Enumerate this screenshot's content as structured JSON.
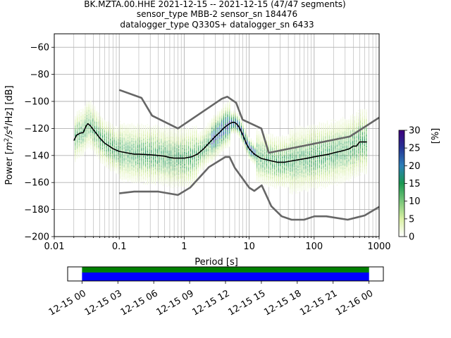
{
  "title": {
    "line1": "BK.MZTA.00.HHE   2021-12-15 -- 2021-12-15  (47/47 segments)",
    "line2": "sensor_type MBB-2 sensor_sn 184476",
    "line3": "datalogger_type Q330S+ datalogger_sn 6433"
  },
  "colors": {
    "nlnm_nhnm": "#666666",
    "mean_curve": "#000000",
    "grid": "#b0b0b0",
    "timeline_top": "#008000",
    "timeline_bottom": "#0000ff",
    "cmap": [
      "#ffffff",
      "#d9f0a3",
      "#78c679",
      "#1a9850",
      "#2c7fb8",
      "#253494",
      "#3f007d"
    ]
  },
  "chart_data": [
    {
      "type": "heatmap",
      "title": "",
      "xlabel": "Period [s]",
      "ylabel_parts": [
        "Power [",
        "m",
        "2",
        "/",
        "s",
        "4",
        "/Hz] [dB]"
      ],
      "x_scale": "log",
      "xlim": [
        0.01,
        1000
      ],
      "ylim": [
        -200,
        -50
      ],
      "x_ticks": [
        {
          "value": 0.01,
          "label": "0.01"
        },
        {
          "value": 0.1,
          "label": "0.1"
        },
        {
          "value": 1,
          "label": "1"
        },
        {
          "value": 10,
          "label": "10"
        },
        {
          "value": 100,
          "label": "100"
        },
        {
          "value": 1000,
          "label": "1000"
        }
      ],
      "y_ticks": [
        {
          "value": -60,
          "label": "−60"
        },
        {
          "value": -80,
          "label": "−80"
        },
        {
          "value": -100,
          "label": "−100"
        },
        {
          "value": -120,
          "label": "−120"
        },
        {
          "value": -140,
          "label": "−140"
        },
        {
          "value": -160,
          "label": "−160"
        },
        {
          "value": -180,
          "label": "−180"
        },
        {
          "value": -200,
          "label": "−200"
        }
      ],
      "grid": true,
      "colorbar": {
        "label": "[%]",
        "range": [
          0,
          30
        ],
        "ticks": [
          {
            "value": 0,
            "label": "0"
          },
          {
            "value": 5,
            "label": "5"
          },
          {
            "value": 10,
            "label": "10"
          },
          {
            "value": 15,
            "label": "15"
          },
          {
            "value": 20,
            "label": "20"
          },
          {
            "value": 25,
            "label": "25"
          },
          {
            "value": 30,
            "label": "30"
          }
        ]
      },
      "nhnm": {
        "x": [
          0.1,
          0.22,
          0.32,
          0.8,
          3.8,
          4.6,
          6.3,
          7.9,
          15.4,
          20,
          354.8,
          1000
        ],
        "y": [
          -91.5,
          -97.4,
          -110.5,
          -120.0,
          -98.0,
          -96.5,
          -101.0,
          -113.5,
          -120.0,
          -138.0,
          -126.0,
          -112.0
        ]
      },
      "nlnm": {
        "x": [
          0.1,
          0.17,
          0.4,
          0.8,
          1.24,
          2.4,
          4.3,
          5.0,
          6.0,
          10.0,
          12.0,
          15.6,
          21.9,
          31.6,
          45,
          70,
          101,
          154,
          328,
          600,
          1000
        ],
        "y": [
          -168.0,
          -166.7,
          -166.7,
          -169.2,
          -163.7,
          -148.6,
          -141.1,
          -141.1,
          -149.0,
          -163.8,
          -166.2,
          -162.1,
          -177.5,
          -185.0,
          -187.5,
          -187.5,
          -185.0,
          -185.0,
          -187.5,
          -184.4,
          -178.0
        ]
      },
      "mean_psd": {
        "x": [
          0.02,
          0.022,
          0.025,
          0.028,
          0.031,
          0.033,
          0.036,
          0.04,
          0.045,
          0.05,
          0.06,
          0.07,
          0.08,
          0.1,
          0.13,
          0.17,
          0.2,
          0.3,
          0.4,
          0.5,
          0.6,
          0.7,
          0.8,
          1.0,
          1.3,
          1.6,
          2.0,
          2.5,
          3.0,
          3.5,
          4.0,
          4.5,
          5.0,
          5.5,
          6.0,
          6.5,
          7.0,
          8.0,
          9.0,
          10.0,
          12.0,
          15.0,
          18.0,
          22.0,
          27.0,
          35.0,
          45.0,
          60.0,
          80.0,
          100.0,
          130.0,
          170.0,
          200.0,
          250.0,
          300.0,
          350.0,
          400.0,
          450.0,
          500.0,
          550.0,
          600.0,
          650.0
        ],
        "y": [
          -129,
          -125,
          -123.5,
          -123,
          -118,
          -116.5,
          -118,
          -121,
          -124,
          -127,
          -131,
          -133,
          -135,
          -137,
          -138,
          -139,
          -139,
          -139.5,
          -140,
          -140.5,
          -141.5,
          -142,
          -142,
          -142,
          -141,
          -139,
          -135,
          -130,
          -126,
          -123,
          -120,
          -118,
          -116.5,
          -115.5,
          -115.5,
          -117,
          -119,
          -125,
          -131,
          -135,
          -139,
          -142,
          -143,
          -144,
          -145,
          -145,
          -144,
          -143,
          -142,
          -141,
          -140,
          -139,
          -138,
          -137,
          -136,
          -135,
          -133,
          -133,
          -130,
          -130,
          -130,
          -130
        ]
      }
    },
    {
      "type": "timeline",
      "x_tick_labels": [
        "12-15 00",
        "12-15 03",
        "12-15 06",
        "12-15 09",
        "12-15 12",
        "12-15 15",
        "12-15 18",
        "12-15 21",
        "12-16 00"
      ],
      "x_ticks_hours": [
        0,
        3,
        6,
        9,
        12,
        15,
        18,
        21,
        24
      ],
      "xlim_hours": [
        -1.2,
        25.2
      ],
      "coverage_hours": [
        0,
        24
      ]
    }
  ]
}
